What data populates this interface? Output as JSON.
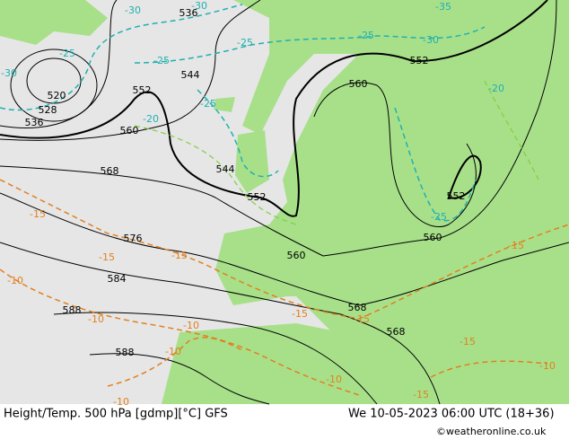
{
  "footer": {
    "left": "Height/Temp. 500 hPa [gdmp][°C] GFS",
    "right": "We 10-05-2023 06:00 UTC (18+36)",
    "credit": "©weatheronline.co.uk"
  },
  "height_labels": [
    "536",
    "544",
    "520",
    "528",
    "536",
    "552",
    "560",
    "568",
    "576",
    "584",
    "588",
    "588",
    "544",
    "552",
    "560",
    "560",
    "552",
    "552",
    "560",
    "568",
    "568"
  ],
  "temp_labels": [
    "-30",
    "-30",
    "-25",
    "-30",
    "-25",
    "-25",
    "-25",
    "-25",
    "-20",
    "-35",
    "-30",
    "-20",
    "-25",
    "-15",
    "-15",
    "-15",
    "-10",
    "-10",
    "-10",
    "-10",
    "-15",
    "-15",
    "-15",
    "-15",
    "-10",
    "-10",
    "-15",
    "-10"
  ]
}
